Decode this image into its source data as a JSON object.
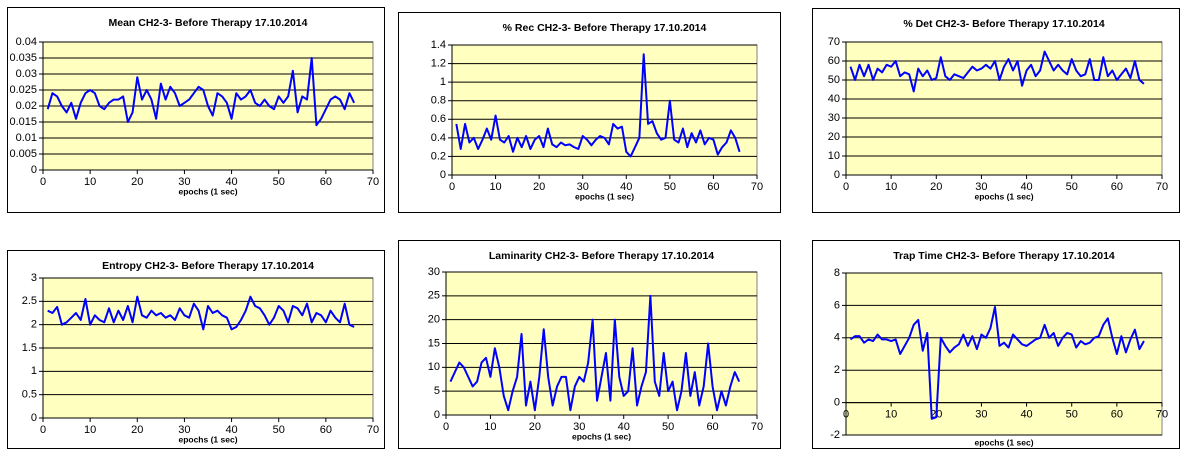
{
  "chart_data": [
    {
      "type": "line",
      "title": "Mean CH2-3- Before Therapy 17.10.2014",
      "x_label": "epochs (1 sec)",
      "x": [
        1,
        2,
        3,
        4,
        5,
        6,
        7,
        8,
        9,
        10,
        11,
        12,
        13,
        14,
        15,
        16,
        17,
        18,
        19,
        20,
        21,
        22,
        23,
        24,
        25,
        26,
        27,
        28,
        29,
        30,
        31,
        32,
        33,
        34,
        35,
        36,
        37,
        38,
        39,
        40,
        41,
        42,
        43,
        44,
        45,
        46,
        47,
        48,
        49,
        50,
        51,
        52,
        53,
        54,
        55,
        56,
        57,
        58,
        59,
        60,
        61,
        62,
        63,
        64,
        65,
        66
      ],
      "values": [
        0.019,
        0.024,
        0.023,
        0.02,
        0.018,
        0.021,
        0.016,
        0.021,
        0.024,
        0.025,
        0.024,
        0.02,
        0.019,
        0.021,
        0.022,
        0.022,
        0.023,
        0.015,
        0.018,
        0.029,
        0.022,
        0.025,
        0.022,
        0.016,
        0.027,
        0.022,
        0.026,
        0.024,
        0.02,
        0.021,
        0.022,
        0.024,
        0.026,
        0.025,
        0.02,
        0.017,
        0.024,
        0.023,
        0.021,
        0.016,
        0.024,
        0.022,
        0.023,
        0.025,
        0.021,
        0.02,
        0.022,
        0.02,
        0.019,
        0.023,
        0.021,
        0.023,
        0.031,
        0.018,
        0.023,
        0.022,
        0.035,
        0.014,
        0.016,
        0.019,
        0.022,
        0.023,
        0.022,
        0.019,
        0.024,
        0.021
      ],
      "color": "#0000ff",
      "background": "#ffffc0",
      "grid": true,
      "xlim": [
        0,
        70
      ],
      "xticks": [
        0,
        10,
        20,
        30,
        40,
        50,
        60,
        70
      ],
      "ylim": [
        0,
        0.04
      ],
      "yticks": [
        0,
        0.005,
        0.01,
        0.015,
        0.02,
        0.025,
        0.03,
        0.035,
        0.04
      ]
    },
    {
      "type": "line",
      "title": "% Rec CH2-3- Before Therapy 17.10.2014",
      "x_label": "epochs (1 sec)",
      "x": [
        1,
        2,
        3,
        4,
        5,
        6,
        7,
        8,
        9,
        10,
        11,
        12,
        13,
        14,
        15,
        16,
        17,
        18,
        19,
        20,
        21,
        22,
        23,
        24,
        25,
        26,
        27,
        28,
        29,
        30,
        31,
        32,
        33,
        34,
        35,
        36,
        37,
        38,
        39,
        40,
        41,
        42,
        43,
        44,
        45,
        46,
        47,
        48,
        49,
        50,
        51,
        52,
        53,
        54,
        55,
        56,
        57,
        58,
        59,
        60,
        61,
        62,
        63,
        64,
        65,
        66
      ],
      "values": [
        0.55,
        0.28,
        0.55,
        0.35,
        0.4,
        0.28,
        0.38,
        0.5,
        0.38,
        0.64,
        0.38,
        0.35,
        0.42,
        0.25,
        0.4,
        0.3,
        0.42,
        0.28,
        0.38,
        0.42,
        0.3,
        0.5,
        0.33,
        0.3,
        0.35,
        0.32,
        0.33,
        0.3,
        0.28,
        0.42,
        0.38,
        0.32,
        0.38,
        0.42,
        0.4,
        0.33,
        0.55,
        0.5,
        0.52,
        0.25,
        0.2,
        0.3,
        0.4,
        1.3,
        0.55,
        0.58,
        0.45,
        0.38,
        0.4,
        0.8,
        0.38,
        0.35,
        0.5,
        0.3,
        0.45,
        0.35,
        0.48,
        0.33,
        0.4,
        0.38,
        0.22,
        0.3,
        0.35,
        0.48,
        0.4,
        0.25
      ],
      "color": "#0000ff",
      "background": "#ffffc0",
      "grid": true,
      "xlim": [
        0,
        70
      ],
      "xticks": [
        0,
        10,
        20,
        30,
        40,
        50,
        60,
        70
      ],
      "ylim": [
        0,
        1.4
      ],
      "yticks": [
        0,
        0.2,
        0.4,
        0.6,
        0.8,
        1,
        1.2,
        1.4
      ]
    },
    {
      "type": "line",
      "title": "% Det CH2-3- Before Therapy 17.10.2014",
      "x_label": "epochs (1 sec)",
      "x": [
        1,
        2,
        3,
        4,
        5,
        6,
        7,
        8,
        9,
        10,
        11,
        12,
        13,
        14,
        15,
        16,
        17,
        18,
        19,
        20,
        21,
        22,
        23,
        24,
        25,
        26,
        27,
        28,
        29,
        30,
        31,
        32,
        33,
        34,
        35,
        36,
        37,
        38,
        39,
        40,
        41,
        42,
        43,
        44,
        45,
        46,
        47,
        48,
        49,
        50,
        51,
        52,
        53,
        54,
        55,
        56,
        57,
        58,
        59,
        60,
        61,
        62,
        63,
        64,
        65,
        66
      ],
      "values": [
        57,
        50,
        58,
        52,
        58,
        50,
        56,
        54,
        58,
        57,
        60,
        52,
        54,
        53,
        44,
        56,
        52,
        55,
        50,
        51,
        62,
        52,
        50,
        53,
        52,
        51,
        54,
        57,
        55,
        56,
        58,
        56,
        60,
        50,
        57,
        61,
        55,
        60,
        47,
        55,
        58,
        52,
        55,
        65,
        60,
        55,
        58,
        55,
        53,
        61,
        55,
        52,
        53,
        61,
        50,
        50,
        62,
        52,
        55,
        50,
        53,
        56,
        51,
        60,
        50,
        48
      ],
      "color": "#0000ff",
      "background": "#ffffc0",
      "grid": true,
      "xlim": [
        0,
        70
      ],
      "xticks": [
        0,
        10,
        20,
        30,
        40,
        50,
        60,
        70
      ],
      "ylim": [
        0,
        70
      ],
      "yticks": [
        0,
        10,
        20,
        30,
        40,
        50,
        60,
        70
      ]
    },
    {
      "type": "line",
      "title": "Entropy CH2-3- Before Therapy 17.10.2014",
      "x_label": "epochs (1 sec)",
      "x": [
        1,
        2,
        3,
        4,
        5,
        6,
        7,
        8,
        9,
        10,
        11,
        12,
        13,
        14,
        15,
        16,
        17,
        18,
        19,
        20,
        21,
        22,
        23,
        24,
        25,
        26,
        27,
        28,
        29,
        30,
        31,
        32,
        33,
        34,
        35,
        36,
        37,
        38,
        39,
        40,
        41,
        42,
        43,
        44,
        45,
        46,
        47,
        48,
        49,
        50,
        51,
        52,
        53,
        54,
        55,
        56,
        57,
        58,
        59,
        60,
        61,
        62,
        63,
        64,
        65,
        66
      ],
      "values": [
        2.3,
        2.25,
        2.38,
        2.0,
        2.05,
        2.15,
        2.25,
        2.1,
        2.55,
        2.0,
        2.2,
        2.1,
        2.05,
        2.35,
        2.05,
        2.3,
        2.1,
        2.4,
        2.05,
        2.6,
        2.2,
        2.15,
        2.3,
        2.2,
        2.25,
        2.15,
        2.2,
        2.1,
        2.35,
        2.2,
        2.15,
        2.45,
        2.3,
        1.9,
        2.4,
        2.25,
        2.3,
        2.2,
        2.15,
        1.9,
        1.95,
        2.1,
        2.3,
        2.6,
        2.4,
        2.35,
        2.2,
        2.0,
        2.15,
        2.4,
        2.3,
        2.05,
        2.4,
        2.35,
        2.2,
        2.45,
        2.05,
        2.25,
        2.2,
        2.05,
        2.3,
        2.15,
        2.05,
        2.45,
        2.0,
        1.95
      ],
      "color": "#0000ff",
      "background": "#ffffc0",
      "grid": true,
      "xlim": [
        0,
        70
      ],
      "xticks": [
        0,
        10,
        20,
        30,
        40,
        50,
        60,
        70
      ],
      "ylim": [
        0,
        3
      ],
      "yticks": [
        0,
        0.5,
        1,
        1.5,
        2,
        2.5,
        3
      ]
    },
    {
      "type": "line",
      "title": "Laminarity CH2-3- Before Therapy 17.10.2014",
      "x_label": "epochs (1 sec)",
      "x": [
        1,
        2,
        3,
        4,
        5,
        6,
        7,
        8,
        9,
        10,
        11,
        12,
        13,
        14,
        15,
        16,
        17,
        18,
        19,
        20,
        21,
        22,
        23,
        24,
        25,
        26,
        27,
        28,
        29,
        30,
        31,
        32,
        33,
        34,
        35,
        36,
        37,
        38,
        39,
        40,
        41,
        42,
        43,
        44,
        45,
        46,
        47,
        48,
        49,
        50,
        51,
        52,
        53,
        54,
        55,
        56,
        57,
        58,
        59,
        60,
        61,
        62,
        63,
        64,
        65,
        66
      ],
      "values": [
        7,
        9,
        11,
        10,
        8,
        6,
        7,
        11,
        12,
        8,
        14,
        10,
        4,
        1,
        5,
        8,
        17,
        2,
        7,
        1,
        8,
        18,
        8,
        2,
        6,
        8,
        8,
        1,
        6,
        8,
        7,
        11,
        20,
        3,
        8,
        13,
        3,
        20,
        8,
        4,
        5,
        14,
        2,
        6,
        9,
        25,
        7,
        4,
        13,
        5,
        7,
        1,
        5,
        13,
        4,
        9,
        2,
        6,
        15,
        6,
        1,
        5,
        2,
        6,
        9,
        7
      ],
      "color": "#0000ff",
      "background": "#ffffc0",
      "grid": true,
      "xlim": [
        0,
        70
      ],
      "xticks": [
        0,
        10,
        20,
        30,
        40,
        50,
        60,
        70
      ],
      "ylim": [
        0,
        30
      ],
      "yticks": [
        0,
        5,
        10,
        15,
        20,
        25,
        30
      ]
    },
    {
      "type": "line",
      "title": "Trap Time CH2-3- Before Therapy 17.10.2014",
      "x_label": "epochs (1 sec)",
      "x": [
        1,
        2,
        3,
        4,
        5,
        6,
        7,
        8,
        9,
        10,
        11,
        12,
        13,
        14,
        15,
        16,
        17,
        18,
        19,
        20,
        21,
        22,
        23,
        24,
        25,
        26,
        27,
        28,
        29,
        30,
        31,
        32,
        33,
        34,
        35,
        36,
        37,
        38,
        39,
        40,
        41,
        42,
        43,
        44,
        45,
        46,
        47,
        48,
        49,
        50,
        51,
        52,
        53,
        54,
        55,
        56,
        57,
        58,
        59,
        60,
        61,
        62,
        63,
        64,
        65,
        66
      ],
      "values": [
        3.9,
        4.1,
        4.1,
        3.7,
        3.9,
        3.8,
        4.2,
        3.9,
        3.9,
        3.8,
        3.9,
        3.0,
        3.5,
        4.0,
        4.8,
        5.1,
        3.2,
        4.3,
        -1.0,
        -0.9,
        4.0,
        3.5,
        3.1,
        3.4,
        3.6,
        4.2,
        3.5,
        4.1,
        3.3,
        4.2,
        4.0,
        4.6,
        5.9,
        3.5,
        3.7,
        3.4,
        4.2,
        3.9,
        3.6,
        3.5,
        3.7,
        3.9,
        4.0,
        4.8,
        4.0,
        4.3,
        3.5,
        4.0,
        4.3,
        4.2,
        3.4,
        3.8,
        3.6,
        3.7,
        4.0,
        4.1,
        4.8,
        5.2,
        4.0,
        3.0,
        4.1,
        3.1,
        3.9,
        4.5,
        3.3,
        3.8
      ],
      "color": "#0000ff",
      "background": "#ffffc0",
      "grid": true,
      "xlim": [
        0,
        70
      ],
      "xticks": [
        0,
        10,
        20,
        30,
        40,
        50,
        60,
        70
      ],
      "ylim": [
        -2,
        8
      ],
      "yticks": [
        -2,
        0,
        2,
        4,
        6,
        8
      ]
    }
  ]
}
